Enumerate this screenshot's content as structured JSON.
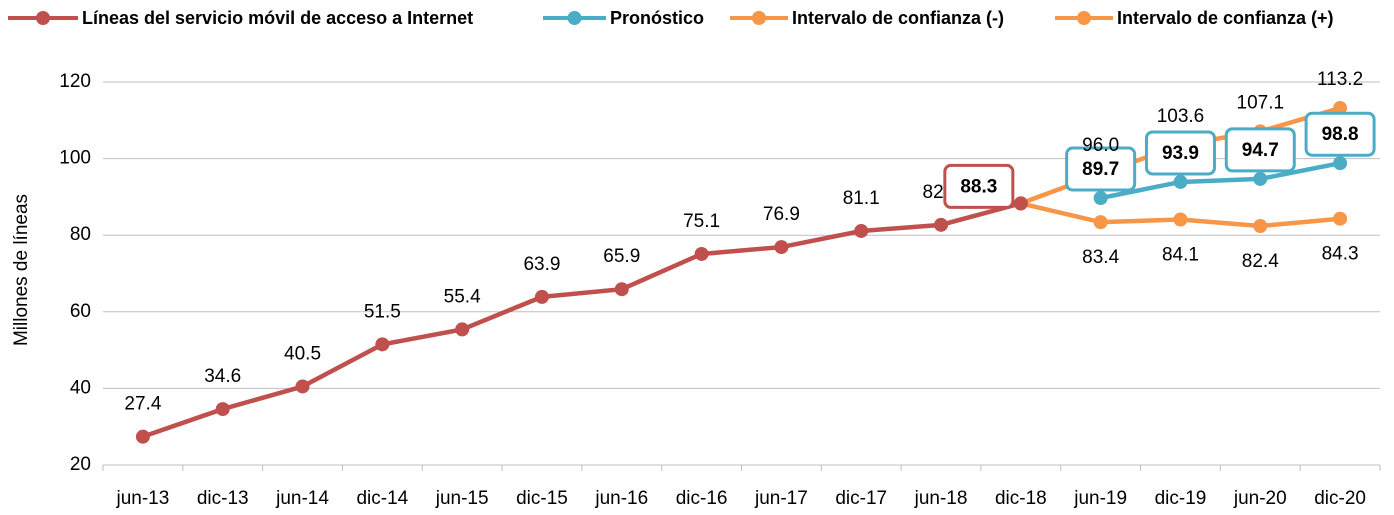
{
  "chart_data": {
    "type": "line",
    "y_label": "Millones de líneas",
    "categories": [
      "jun-13",
      "dic-13",
      "jun-14",
      "dic-14",
      "jun-15",
      "dic-15",
      "jun-16",
      "dic-16",
      "jun-17",
      "dic-17",
      "jun-18",
      "dic-18",
      "jun-19",
      "dic-19",
      "jun-20",
      "dic-20"
    ],
    "series": [
      {
        "name": "Líneas del servicio móvil de acceso a Internet",
        "color": "#c0504d",
        "values": [
          27.4,
          34.6,
          40.5,
          51.5,
          55.4,
          63.9,
          65.9,
          75.1,
          76.9,
          81.1,
          82.7,
          88.3,
          null,
          null,
          null,
          null
        ],
        "value_labels": [
          "27.4",
          "34.6",
          "40.5",
          "51.5",
          "55.4",
          "63.9",
          "65.9",
          "75.1",
          "76.9",
          "81.1",
          "82.7",
          "88.3",
          null,
          null,
          null,
          null
        ]
      },
      {
        "name": "Pronóstico",
        "color": "#4bacc6",
        "values": [
          null,
          null,
          null,
          null,
          null,
          null,
          null,
          null,
          null,
          null,
          null,
          null,
          89.7,
          93.9,
          94.7,
          98.8
        ],
        "value_labels": [
          null,
          null,
          null,
          null,
          null,
          null,
          null,
          null,
          null,
          null,
          null,
          null,
          "89.7",
          "93.9",
          "94.7",
          "98.8"
        ]
      },
      {
        "name": "Intervalo de confianza (-)",
        "color": "#f79646",
        "values": [
          null,
          null,
          null,
          null,
          null,
          null,
          null,
          null,
          null,
          null,
          null,
          88.3,
          83.4,
          84.1,
          82.4,
          84.3
        ],
        "value_labels": [
          null,
          null,
          null,
          null,
          null,
          null,
          null,
          null,
          null,
          null,
          null,
          null,
          "83.4",
          "84.1",
          "82.4",
          "84.3"
        ]
      },
      {
        "name": "Intervalo de confianza (+)",
        "color": "#f79646",
        "values": [
          null,
          null,
          null,
          null,
          null,
          null,
          null,
          null,
          null,
          null,
          null,
          88.3,
          96.0,
          103.6,
          107.1,
          113.2
        ],
        "value_labels": [
          null,
          null,
          null,
          null,
          null,
          null,
          null,
          null,
          null,
          null,
          null,
          null,
          "96.0",
          "103.6",
          "107.1",
          "113.2"
        ]
      }
    ],
    "ylim": [
      20,
      120
    ],
    "yticks": [
      20,
      40,
      60,
      80,
      100,
      120
    ],
    "grid": true,
    "legend": "top"
  }
}
